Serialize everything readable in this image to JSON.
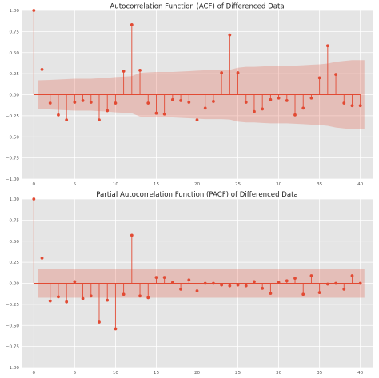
{
  "colors": {
    "plot_background": "#e5e5e5",
    "grid": "#ffffff",
    "stem": "#e24a33",
    "confidence_band": "#e24a33"
  },
  "chart_data": [
    {
      "type": "stem",
      "title": "Autocorrelation Function (ACF)  of Differenced Data",
      "xlim": [
        -1.5,
        41.5
      ],
      "ylim": [
        -1.0,
        1.0
      ],
      "xticks": [
        0,
        5,
        10,
        15,
        20,
        25,
        30,
        35,
        40
      ],
      "yticks": [
        -1.0,
        -0.75,
        -0.5,
        -0.25,
        0.0,
        0.25,
        0.5,
        0.75,
        1.0
      ],
      "ytick_labels": [
        "−1.00",
        "−0.75",
        "−0.50",
        "−0.25",
        "0.00",
        "0.25",
        "0.50",
        "0.75",
        "1.00"
      ],
      "grid": true,
      "lags": [
        0,
        1,
        2,
        3,
        4,
        5,
        6,
        7,
        8,
        9,
        10,
        11,
        12,
        13,
        14,
        15,
        16,
        17,
        18,
        19,
        20,
        21,
        22,
        23,
        24,
        25,
        26,
        27,
        28,
        29,
        30,
        31,
        32,
        33,
        34,
        35,
        36,
        37,
        38,
        39,
        40
      ],
      "values": [
        1.0,
        0.3,
        -0.1,
        -0.24,
        -0.3,
        -0.09,
        -0.07,
        -0.09,
        -0.3,
        -0.19,
        -0.1,
        0.28,
        0.83,
        0.29,
        -0.1,
        -0.22,
        -0.23,
        -0.06,
        -0.07,
        -0.09,
        -0.3,
        -0.16,
        -0.08,
        0.26,
        0.71,
        0.26,
        -0.09,
        -0.2,
        -0.17,
        -0.06,
        -0.04,
        -0.07,
        -0.24,
        -0.16,
        -0.04,
        0.2,
        0.58,
        0.24,
        -0.1,
        -0.13,
        -0.13
      ],
      "confidence_band": [
        0.0,
        0.17,
        0.175,
        0.18,
        0.185,
        0.19,
        0.19,
        0.19,
        0.195,
        0.2,
        0.21,
        0.215,
        0.22,
        0.26,
        0.265,
        0.27,
        0.27,
        0.27,
        0.275,
        0.28,
        0.285,
        0.29,
        0.29,
        0.29,
        0.295,
        0.32,
        0.33,
        0.33,
        0.335,
        0.34,
        0.34,
        0.34,
        0.345,
        0.35,
        0.355,
        0.36,
        0.37,
        0.39,
        0.4,
        0.41,
        0.41
      ]
    },
    {
      "type": "stem",
      "title": "Partial Autocorrelation Function (PACF)  of Differenced Data",
      "xlim": [
        -1.5,
        41.5
      ],
      "ylim": [
        -1.0,
        1.0
      ],
      "xticks": [
        0,
        5,
        10,
        15,
        20,
        25,
        30,
        35,
        40
      ],
      "yticks": [
        -1.0,
        -0.75,
        -0.5,
        -0.25,
        0.0,
        0.25,
        0.5,
        0.75,
        1.0
      ],
      "ytick_labels": [
        "−1.00",
        "−0.75",
        "−0.50",
        "−0.25",
        "0.00",
        "0.25",
        "0.50",
        "0.75",
        "1.00"
      ],
      "grid": true,
      "lags": [
        0,
        1,
        2,
        3,
        4,
        5,
        6,
        7,
        8,
        9,
        10,
        11,
        12,
        13,
        14,
        15,
        16,
        17,
        18,
        19,
        20,
        21,
        22,
        23,
        24,
        25,
        26,
        27,
        28,
        29,
        30,
        31,
        32,
        33,
        34,
        35,
        36,
        37,
        38,
        39,
        40
      ],
      "values": [
        1.0,
        0.3,
        -0.21,
        -0.16,
        -0.22,
        0.02,
        -0.18,
        -0.15,
        -0.46,
        -0.2,
        -0.54,
        -0.13,
        0.57,
        -0.15,
        -0.17,
        0.07,
        0.07,
        0.01,
        -0.07,
        0.04,
        -0.09,
        0.0,
        0.0,
        -0.02,
        -0.03,
        -0.02,
        -0.03,
        0.02,
        -0.06,
        -0.12,
        0.01,
        0.03,
        0.06,
        -0.13,
        0.09,
        -0.11,
        -0.01,
        0.0,
        -0.07,
        0.09,
        0.0
      ],
      "confidence_band": 0.17
    }
  ]
}
